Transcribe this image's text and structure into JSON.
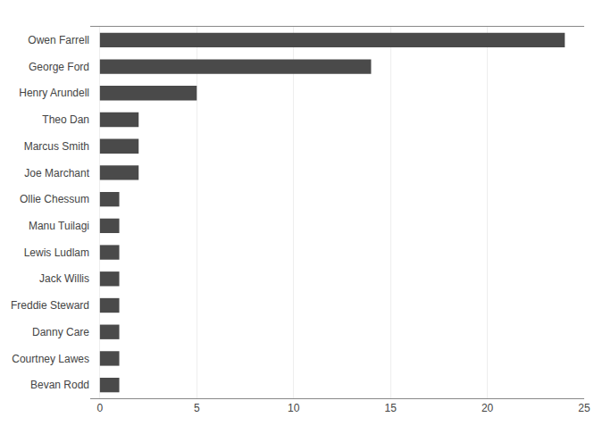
{
  "chart_data": {
    "type": "bar",
    "orientation": "horizontal",
    "categories": [
      "Owen Farrell",
      "George Ford",
      "Henry Arundell",
      "Theo Dan",
      "Marcus Smith",
      "Joe Marchant",
      "Ollie Chessum",
      "Manu Tuilagi",
      "Lewis Ludlam",
      "Jack Willis",
      "Freddie Steward",
      "Danny Care",
      "Courtney Lawes",
      "Bevan Rodd"
    ],
    "values": [
      24,
      14,
      5,
      2,
      2,
      2,
      1,
      1,
      1,
      1,
      1,
      1,
      1,
      1
    ],
    "color": "#4a4a4a",
    "xlim": [
      -0.5,
      25
    ],
    "xticks": [
      0,
      5,
      10,
      15,
      20,
      25
    ],
    "grid": true
  }
}
